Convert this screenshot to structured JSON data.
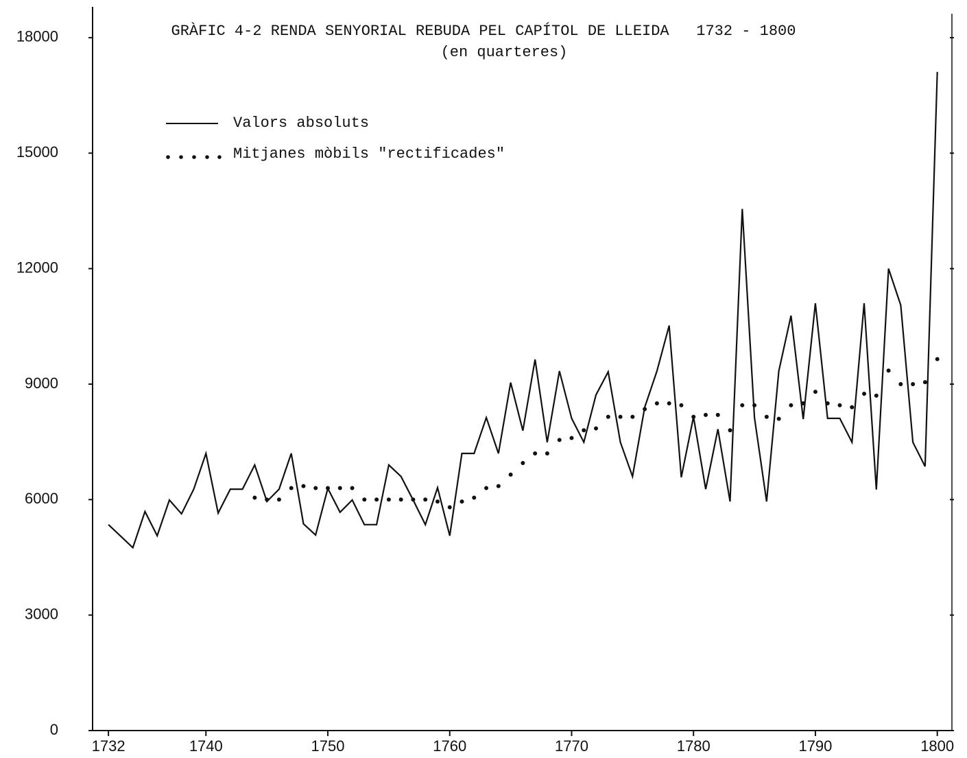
{
  "chart_data": {
    "type": "line",
    "title": "GRÀFIC 4-2 RENDA SENYORIAL REBUDA PEL CAPÍTOL DE LLEIDA   1732 - 1800",
    "subtitle": "(en quarteres)",
    "x": [
      1732,
      1733,
      1734,
      1735,
      1736,
      1737,
      1738,
      1739,
      1740,
      1741,
      1742,
      1743,
      1744,
      1745,
      1746,
      1747,
      1748,
      1749,
      1750,
      1751,
      1752,
      1753,
      1754,
      1755,
      1756,
      1757,
      1758,
      1759,
      1760,
      1761,
      1762,
      1763,
      1764,
      1765,
      1766,
      1767,
      1768,
      1769,
      1770,
      1771,
      1772,
      1773,
      1774,
      1775,
      1776,
      1777,
      1778,
      1779,
      1780,
      1781,
      1782,
      1783,
      1784,
      1785,
      1786,
      1787,
      1788,
      1789,
      1790,
      1791,
      1792,
      1793,
      1794,
      1795,
      1796,
      1797,
      1798,
      1799,
      1800
    ],
    "series": [
      {
        "name": "Valors absoluts",
        "color": "#111111",
        "style": "solid",
        "values": [
          5350,
          5050,
          4750,
          5690,
          5060,
          5990,
          5630,
          6270,
          7200,
          5650,
          6270,
          6270,
          6900,
          5950,
          6270,
          7200,
          5370,
          5080,
          6290,
          5670,
          5990,
          5350,
          5350,
          6900,
          6600,
          5990,
          5350,
          6310,
          5060,
          7200,
          7200,
          8130,
          7200,
          9040,
          7790,
          9640,
          7490,
          9340,
          8110,
          7490,
          8720,
          9320,
          7490,
          6600,
          8400,
          9340,
          10520,
          6580,
          8150,
          6270,
          7830,
          5950,
          13550,
          8130,
          5950,
          9340,
          10780,
          8090,
          11100,
          8110,
          8110,
          7490,
          11100,
          6260,
          12000,
          11050,
          7490,
          6860,
          17110
        ]
      },
      {
        "name": "Mitjanes mòbils \"rectificades\"",
        "color": "#111111",
        "style": "dotted",
        "values": [
          null,
          null,
          null,
          null,
          null,
          null,
          null,
          null,
          null,
          null,
          null,
          null,
          6050,
          6000,
          6000,
          6300,
          6350,
          6300,
          6300,
          6300,
          6300,
          6000,
          6000,
          6000,
          6000,
          6000,
          6000,
          5950,
          5800,
          5950,
          6050,
          6300,
          6350,
          6650,
          6950,
          7200,
          7200,
          7550,
          7600,
          7800,
          7850,
          8150,
          8150,
          8150,
          8350,
          8500,
          8500,
          8450,
          8150,
          8200,
          8200,
          7800,
          8450,
          8450,
          8150,
          8100,
          8450,
          8500,
          8800,
          8500,
          8450,
          8400,
          8750,
          8700,
          9350,
          9000,
          9000,
          9050,
          9650
        ]
      }
    ],
    "xlim": [
      1730.7,
      1801.2
    ],
    "xticks": [
      1732,
      1740,
      1750,
      1760,
      1770,
      1780,
      1790,
      1800
    ],
    "ylim": [
      0,
      18800
    ],
    "yticks": [
      0,
      3000,
      6000,
      9000,
      12000,
      15000,
      18000
    ],
    "grid": false,
    "legend": "upper left"
  }
}
